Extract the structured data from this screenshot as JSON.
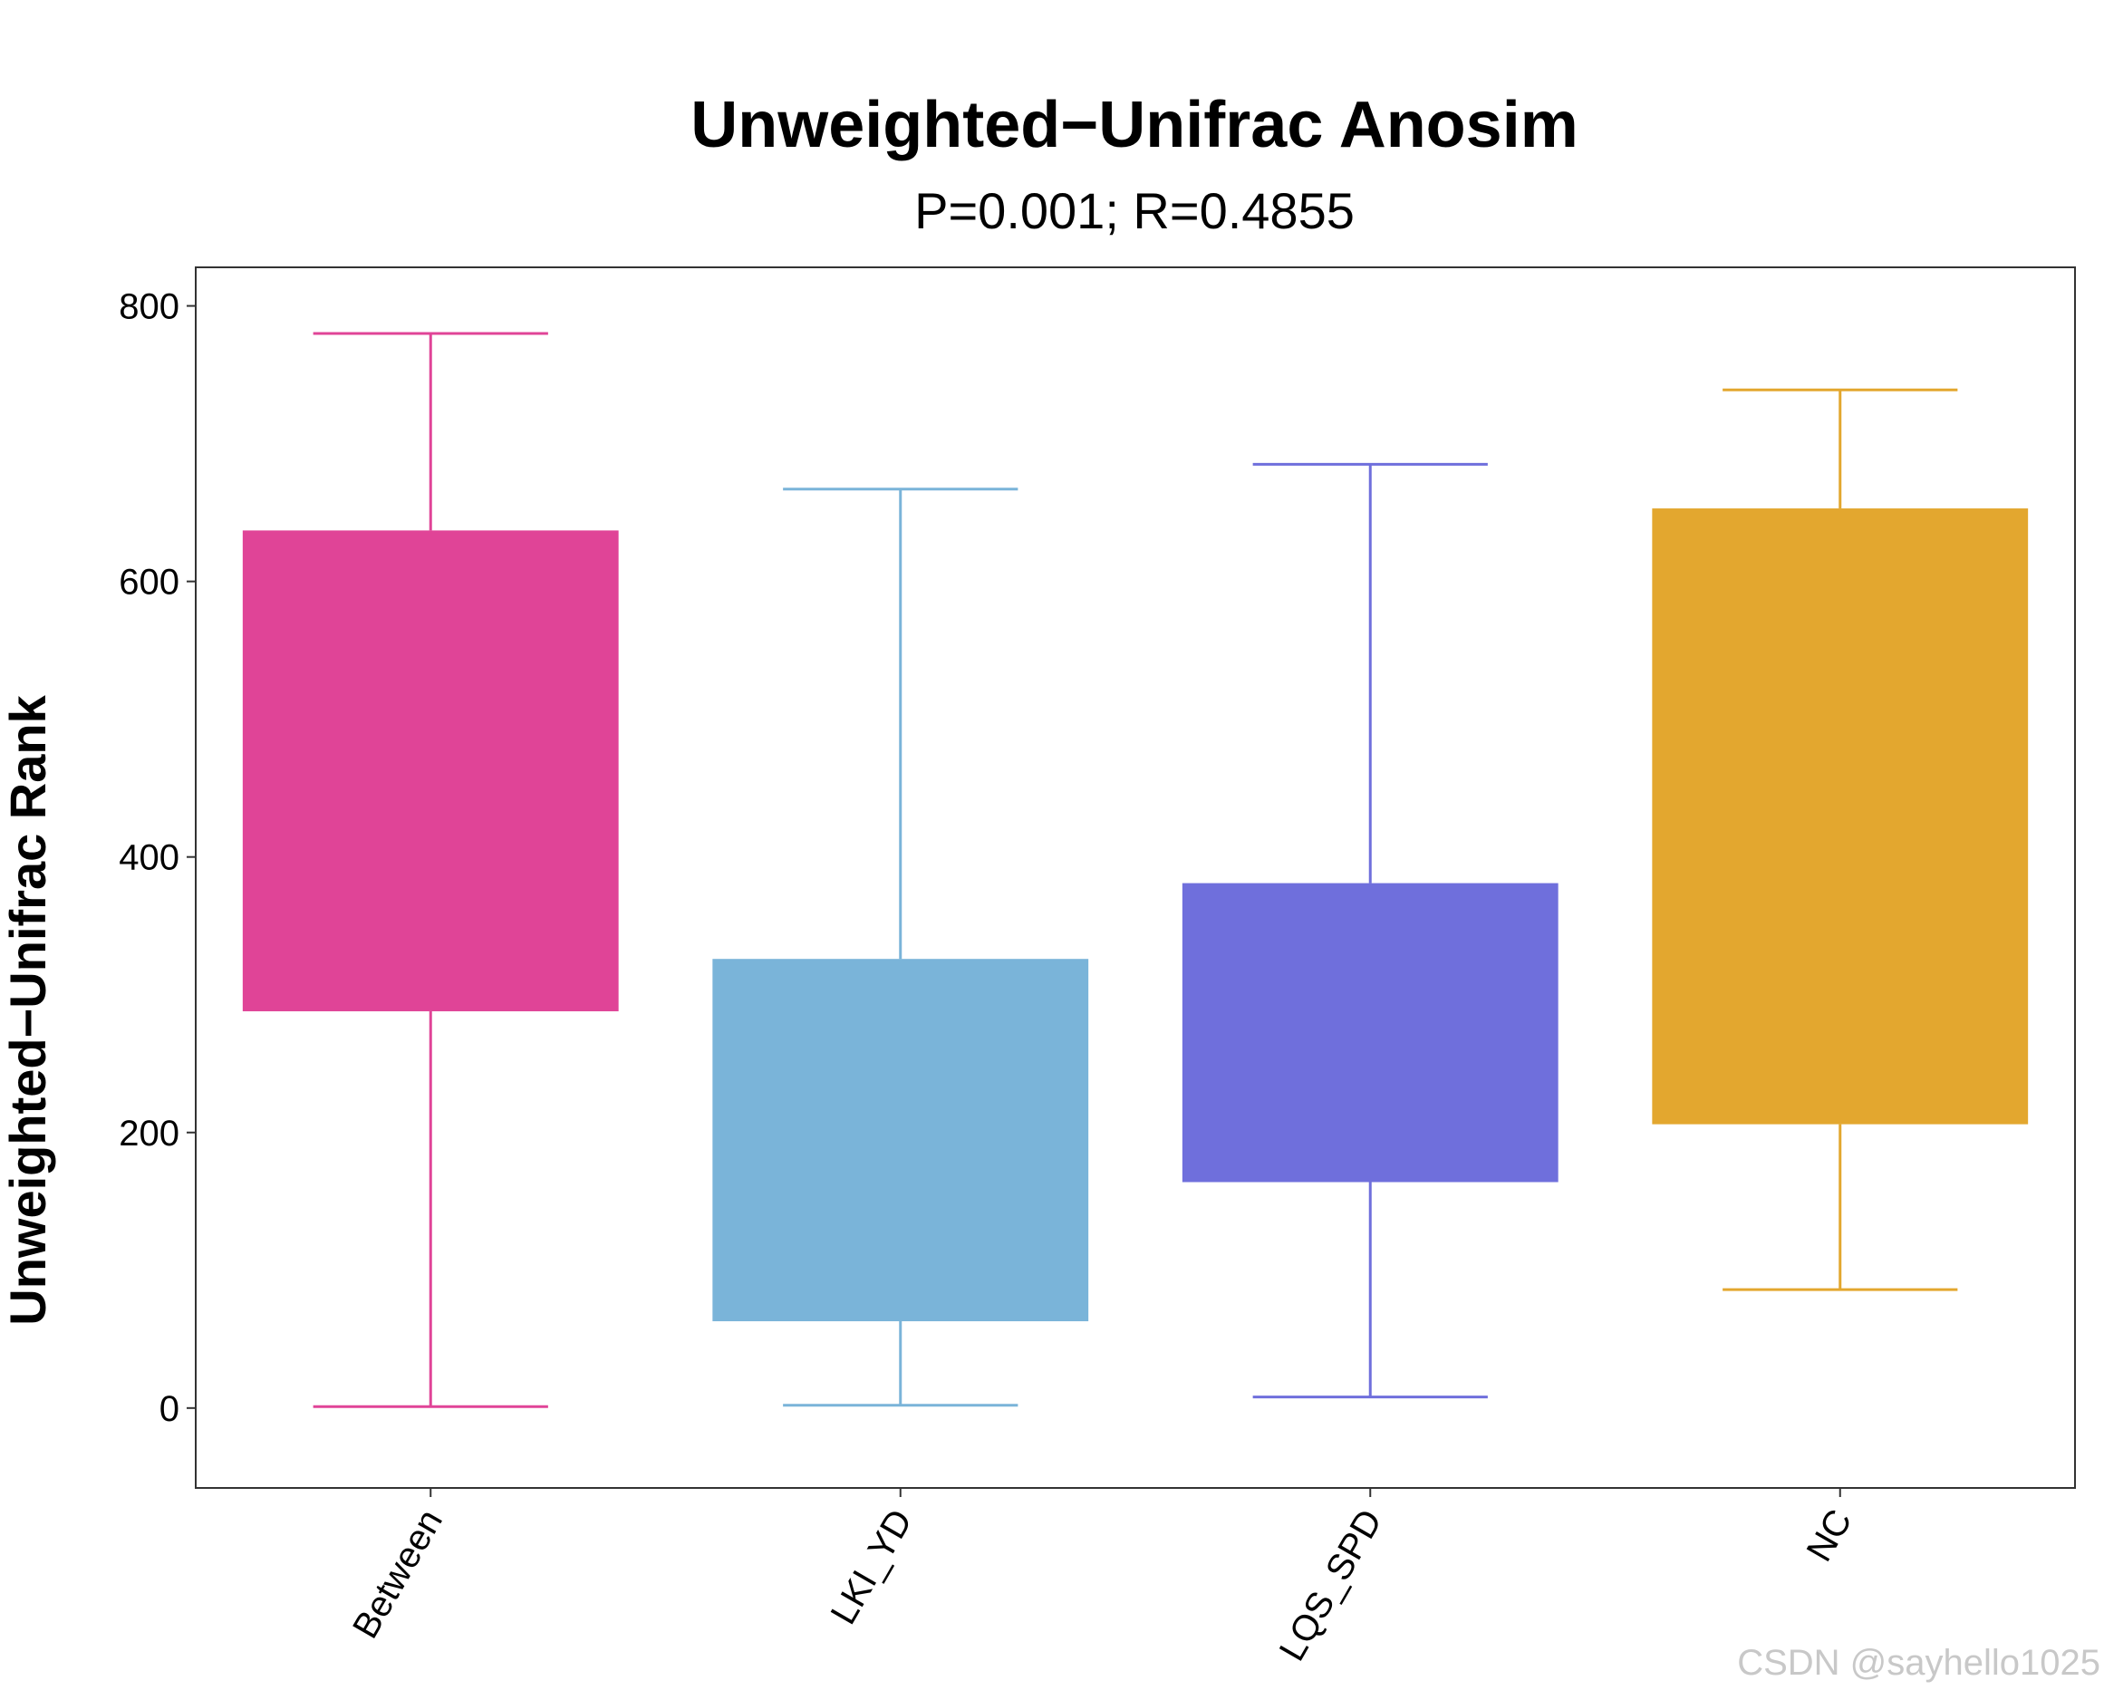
{
  "chart_data": {
    "type": "box",
    "title": "Unweighted−Unifrac Anosim",
    "subtitle": "P=0.001; R=0.4855",
    "xlabel": "",
    "ylabel": "Unweighted−Unifrac Rank",
    "ylim": [
      -58,
      828
    ],
    "yticks": [
      0,
      200,
      400,
      600,
      800
    ],
    "categories": [
      "Between",
      "LKI_YD",
      "LQS_SPD",
      "NC"
    ],
    "series": [
      {
        "category": "Between",
        "whisker_low": 1,
        "q1": 288,
        "q3": 637,
        "whisker_high": 780,
        "color": "#E04497"
      },
      {
        "category": "LKI_YD",
        "whisker_low": 2,
        "q1": 63,
        "q3": 326,
        "whisker_high": 667,
        "color": "#7AB4D9"
      },
      {
        "category": "LQS_SPD",
        "whisker_low": 8,
        "q1": 164,
        "q3": 381,
        "whisker_high": 685,
        "color": "#6F6FDC"
      },
      {
        "category": "NC",
        "whisker_low": 86,
        "q1": 206,
        "q3": 653,
        "whisker_high": 739,
        "color": "#E3A72F"
      }
    ],
    "grid": false,
    "legend": "none"
  },
  "watermark": "CSDN @sayhello1025"
}
